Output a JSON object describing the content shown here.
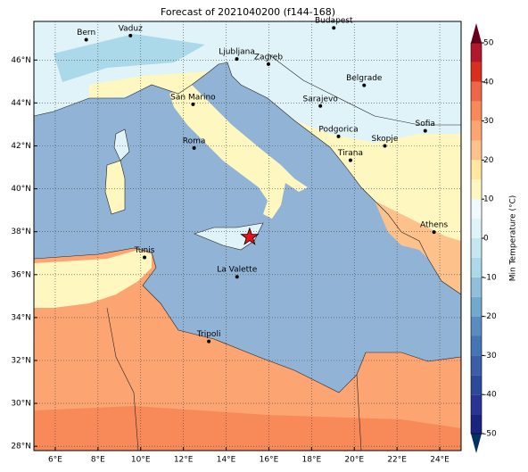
{
  "title": "Forecast of 2021040200 (f144-168)",
  "map": {
    "xlim": [
      5,
      25
    ],
    "ylim": [
      27.8,
      47.8
    ],
    "xticks": [
      {
        "value": 6,
        "label": "6°E"
      },
      {
        "value": 8,
        "label": "8°E"
      },
      {
        "value": 10,
        "label": "10°E"
      },
      {
        "value": 12,
        "label": "12°E"
      },
      {
        "value": 14,
        "label": "14°E"
      },
      {
        "value": 16,
        "label": "16°E"
      },
      {
        "value": 18,
        "label": "18°E"
      },
      {
        "value": 20,
        "label": "20°E"
      },
      {
        "value": 22,
        "label": "22°E"
      },
      {
        "value": 24,
        "label": "24°E"
      }
    ],
    "yticks": [
      {
        "value": 28,
        "label": "28°N"
      },
      {
        "value": 30,
        "label": "30°N"
      },
      {
        "value": 32,
        "label": "32°N"
      },
      {
        "value": 34,
        "label": "34°N"
      },
      {
        "value": 36,
        "label": "36°N"
      },
      {
        "value": 38,
        "label": "38°N"
      },
      {
        "value": 40,
        "label": "40°N"
      },
      {
        "value": 42,
        "label": "42°N"
      },
      {
        "value": 44,
        "label": "44°N"
      },
      {
        "value": 46,
        "label": "46°N"
      }
    ],
    "grid": true,
    "cities": [
      {
        "name": "Bern",
        "lon": 7.45,
        "lat": 46.95
      },
      {
        "name": "Vaduz",
        "lon": 9.52,
        "lat": 47.14
      },
      {
        "name": "Budapest",
        "lon": 19.04,
        "lat": 47.5
      },
      {
        "name": "Ljubljana",
        "lon": 14.5,
        "lat": 46.05
      },
      {
        "name": "Zagreb",
        "lon": 15.98,
        "lat": 45.81
      },
      {
        "name": "Belgrade",
        "lon": 20.46,
        "lat": 44.82
      },
      {
        "name": "San Marino",
        "lon": 12.45,
        "lat": 43.94
      },
      {
        "name": "Sarajevo",
        "lon": 18.41,
        "lat": 43.86
      },
      {
        "name": "Sofia",
        "lon": 23.32,
        "lat": 42.7
      },
      {
        "name": "Podgorica",
        "lon": 19.26,
        "lat": 42.44
      },
      {
        "name": "Skopje",
        "lon": 21.43,
        "lat": 42.0
      },
      {
        "name": "Roma",
        "lon": 12.5,
        "lat": 41.9
      },
      {
        "name": "Tirana",
        "lon": 19.82,
        "lat": 41.33
      },
      {
        "name": "Athens",
        "lon": 23.73,
        "lat": 37.98
      },
      {
        "name": "Tunis",
        "lon": 10.18,
        "lat": 36.8
      },
      {
        "name": "La Valette",
        "lon": 14.51,
        "lat": 35.9
      },
      {
        "name": "Tripoli",
        "lon": 13.19,
        "lat": 32.89
      }
    ],
    "marker": {
      "lon": 15.1,
      "lat": 37.75,
      "color": "#e8101a"
    }
  },
  "colorbar": {
    "label": "Min Temperature (°C)",
    "lim": [
      -50,
      50
    ],
    "ticks": [
      -50,
      -40,
      -30,
      -20,
      -10,
      0,
      10,
      20,
      30,
      40,
      50
    ],
    "colors": [
      "#1a237e",
      "#283593",
      "#2c4a9a",
      "#3a5ea8",
      "#4575b4",
      "#5b8bc0",
      "#74a9cf",
      "#91bfdb",
      "#abd9e9",
      "#c6e6f0",
      "#e0f3f8",
      "#f0f9fb",
      "#fff7c0",
      "#fee8a0",
      "#fdc28c",
      "#fca572",
      "#f88a5a",
      "#ef6548",
      "#d7301f",
      "#b2182b"
    ]
  }
}
